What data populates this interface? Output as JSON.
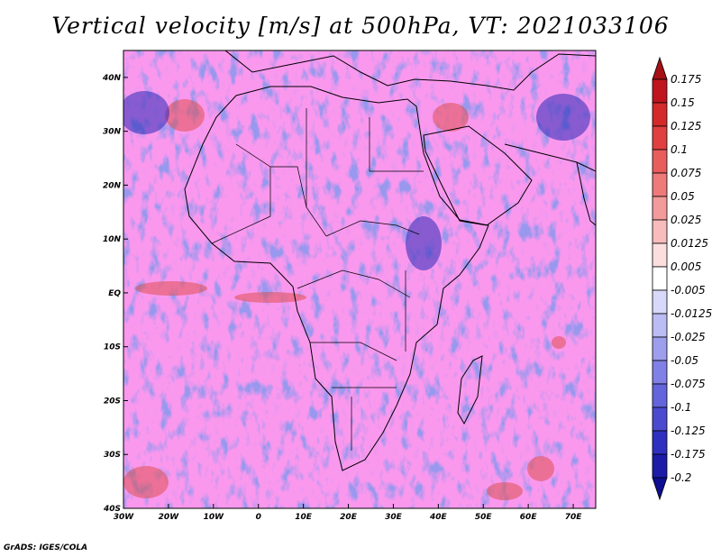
{
  "title": "Vertical velocity [m/s] at 500hPa, VT: 2021033106",
  "credit": "GrADS: IGES/COLA",
  "map": {
    "lon_range": [
      -30,
      75
    ],
    "lat_range": [
      -40,
      45
    ],
    "lon_ticks": [
      {
        "value": -30,
        "label": "30W"
      },
      {
        "value": -20,
        "label": "20W"
      },
      {
        "value": -10,
        "label": "10W"
      },
      {
        "value": 0,
        "label": "0"
      },
      {
        "value": 10,
        "label": "10E"
      },
      {
        "value": 20,
        "label": "20E"
      },
      {
        "value": 30,
        "label": "30E"
      },
      {
        "value": 40,
        "label": "40E"
      },
      {
        "value": 50,
        "label": "50E"
      },
      {
        "value": 60,
        "label": "60E"
      },
      {
        "value": 70,
        "label": "70E"
      }
    ],
    "lat_ticks": [
      {
        "value": 40,
        "label": "40N"
      },
      {
        "value": 30,
        "label": "30N"
      },
      {
        "value": 20,
        "label": "20N"
      },
      {
        "value": 10,
        "label": "10N"
      },
      {
        "value": 0,
        "label": "EQ"
      },
      {
        "value": -10,
        "label": "10S"
      },
      {
        "value": -20,
        "label": "20S"
      },
      {
        "value": -30,
        "label": "30S"
      },
      {
        "value": -40,
        "label": "40S"
      }
    ]
  },
  "colorbar": {
    "levels": [
      "0.175",
      "0.15",
      "0.125",
      "0.1",
      "0.075",
      "0.05",
      "0.025",
      "0.0125",
      "0.005",
      "-0.005",
      "-0.0125",
      "-0.025",
      "-0.05",
      "-0.075",
      "-0.1",
      "-0.125",
      "-0.175",
      "-0.2"
    ],
    "colors": [
      "#a50f15",
      "#c0151e",
      "#d42a2a",
      "#e14040",
      "#e85c5c",
      "#ee7a7a",
      "#f39a9a",
      "#f8bcbc",
      "#fcdede",
      "#ffffff",
      "#d8d8fa",
      "#bcbcf4",
      "#9e9eee",
      "#8080e6",
      "#6464dc",
      "#4a4ad0",
      "#3030c0",
      "#1c1ca8",
      "#0e0e90"
    ]
  },
  "colors": {
    "positive": "#d42a2a",
    "negative": "#5050d8",
    "neutral": "#ffffff"
  }
}
